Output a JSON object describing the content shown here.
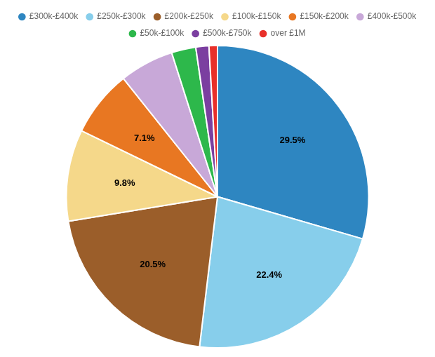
{
  "chart_data": {
    "type": "pie",
    "categories": [
      "£300k-£400k",
      "£250k-£300k",
      "£200k-£250k",
      "£100k-£150k",
      "£150k-£200k",
      "£400k-£500k",
      "£50k-£100k",
      "£500k-£750k",
      "over £1M"
    ],
    "values": [
      29.5,
      22.4,
      20.5,
      9.8,
      7.1,
      5.8,
      2.6,
      1.4,
      0.9
    ],
    "value_labels": [
      "29.5%",
      "22.4%",
      "20.5%",
      "9.8%",
      "7.1%",
      null,
      null,
      null,
      null
    ],
    "colors": [
      "#2e86c1",
      "#87ceeb",
      "#9b5e2a",
      "#f5d88a",
      "#e87722",
      "#c8a8d8",
      "#2db84b",
      "#7b3fa0",
      "#e8302a"
    ],
    "data_labels": true,
    "legend": "top"
  }
}
